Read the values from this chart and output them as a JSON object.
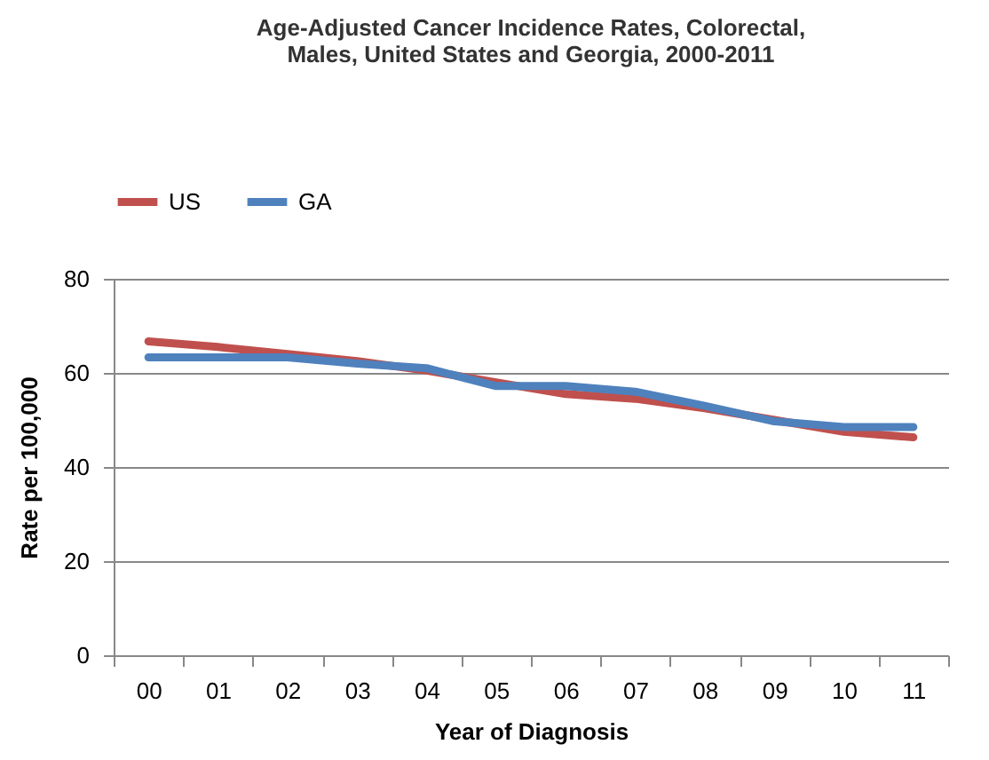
{
  "chart_data": {
    "type": "line",
    "title": [
      "Age-Adjusted Cancer Incidence Rates, Colorectal,",
      "Males, United States and Georgia, 2000-2011"
    ],
    "xlabel": "Year of Diagnosis",
    "ylabel": "Rate per 100,000",
    "categories": [
      "00",
      "01",
      "02",
      "03",
      "04",
      "05",
      "06",
      "07",
      "08",
      "09",
      "10",
      "11"
    ],
    "series": [
      {
        "name": "US",
        "color": "#c0504d",
        "values": [
          66.7,
          65.5,
          64,
          62.5,
          60.5,
          58,
          55.5,
          54.5,
          52.5,
          50,
          47.5,
          46.3
        ]
      },
      {
        "name": "GA",
        "color": "#4f81bd",
        "values": [
          63.3,
          63.3,
          63.3,
          62,
          61,
          57.2,
          57.2,
          56,
          53,
          49.7,
          48.5,
          48.5
        ]
      }
    ],
    "ylim": [
      0,
      80
    ],
    "yticks": [
      0,
      20,
      40,
      60,
      80
    ],
    "grid": "y",
    "legend": "top",
    "marker": "none",
    "line_style": "solid"
  }
}
